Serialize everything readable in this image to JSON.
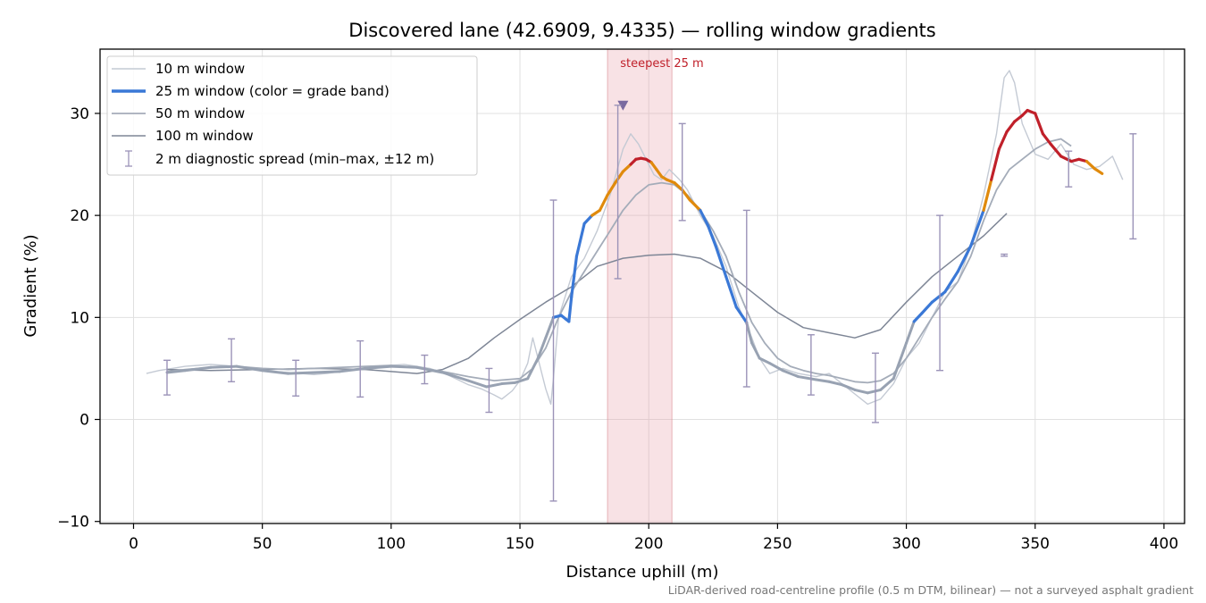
{
  "chart_data": {
    "type": "line",
    "title": "Discovered lane (42.6909, 9.4335) — rolling window gradients",
    "xlabel": "Distance uphill (m)",
    "ylabel": "Gradient (%)",
    "xlim": [
      -13,
      408
    ],
    "ylim": [
      -10.2,
      36.3
    ],
    "xticks": [
      0,
      50,
      100,
      150,
      200,
      250,
      300,
      350,
      400
    ],
    "yticks": [
      -10,
      0,
      10,
      20,
      30
    ],
    "xtick_labels": [
      "0",
      "50",
      "100",
      "150",
      "200",
      "250",
      "300",
      "350",
      "400"
    ],
    "ytick_labels": [
      "−10",
      "0",
      "10",
      "20",
      "30"
    ],
    "grid": true,
    "legend_position": "top-left",
    "footnote": "LiDAR-derived road-centreline profile (0.5 m DTM, bilinear) — not a surveyed asphalt gradient",
    "highlight": {
      "x_start": 184,
      "x_end": 209,
      "label": "steepest 25 m",
      "marker_x": 190,
      "marker_y": 30.8
    },
    "grade_band_colors": {
      "low": "#3a78d6",
      "mid": "#e08a0c",
      "high": "#c0202a"
    },
    "series": [
      {
        "name": "10 m window",
        "color": "#c4cad4",
        "x": [
          5,
          10,
          15,
          20,
          25,
          30,
          35,
          40,
          45,
          50,
          55,
          60,
          65,
          70,
          75,
          80,
          85,
          90,
          95,
          100,
          105,
          110,
          115,
          120,
          125,
          130,
          135,
          140,
          143,
          147,
          150,
          153,
          155,
          157,
          160,
          162,
          163,
          165,
          170,
          175,
          180,
          185,
          190,
          193,
          196,
          199,
          202,
          205,
          208,
          212,
          215,
          220,
          225,
          230,
          235,
          240,
          243,
          247,
          252,
          258,
          265,
          270,
          275,
          280,
          285,
          290,
          295,
          300,
          305,
          310,
          315,
          320,
          325,
          330,
          335,
          338,
          340,
          342,
          345,
          350,
          355,
          360,
          365,
          370,
          375,
          380,
          384
        ],
        "y": [
          4.5,
          4.8,
          5.0,
          5.2,
          5.3,
          5.4,
          5.3,
          5.2,
          5.0,
          4.8,
          4.7,
          4.6,
          4.5,
          4.4,
          4.5,
          4.7,
          4.9,
          5.0,
          5.2,
          5.3,
          5.4,
          5.2,
          5.0,
          4.6,
          4.0,
          3.4,
          3.0,
          2.4,
          2.0,
          2.8,
          3.8,
          5.5,
          8.0,
          6.0,
          3.0,
          1.5,
          4.0,
          10.0,
          14.0,
          15.8,
          18.5,
          22.0,
          26.5,
          28.0,
          27.0,
          25.5,
          24.0,
          23.5,
          24.5,
          23.5,
          22.5,
          20.0,
          18.0,
          15.0,
          11.0,
          8.0,
          6.0,
          4.5,
          5.0,
          4.5,
          4.2,
          4.5,
          3.5,
          2.5,
          1.5,
          2.0,
          3.5,
          6.0,
          7.5,
          10.0,
          12.5,
          13.5,
          17.0,
          22.0,
          28.0,
          33.5,
          34.2,
          33.0,
          29.0,
          26.0,
          25.5,
          27.0,
          25.0,
          24.5,
          24.8,
          25.8,
          23.5
        ]
      },
      {
        "name": "25 m window (color = grade band)",
        "color": "#3a78d6",
        "x": [
          13,
          20,
          30,
          40,
          50,
          60,
          70,
          80,
          90,
          100,
          110,
          120,
          130,
          137,
          143,
          148,
          153,
          157,
          160,
          163,
          166,
          168,
          169,
          170,
          171,
          172,
          175,
          178,
          181,
          184,
          187,
          190,
          193,
          195,
          197,
          199,
          201,
          203,
          205,
          207,
          210,
          213,
          216,
          220,
          223,
          226,
          230,
          234,
          238,
          240,
          243,
          247,
          252,
          258,
          265,
          270,
          275,
          280,
          285,
          290,
          295,
          300,
          303,
          306,
          310,
          315,
          320,
          325,
          330,
          333,
          336,
          339,
          342,
          345,
          347,
          350,
          353,
          356,
          360,
          364,
          367,
          370,
          373,
          376
        ],
        "y": [
          4.6,
          4.8,
          5.1,
          5.2,
          4.8,
          4.5,
          4.6,
          4.7,
          5.0,
          5.2,
          5.1,
          4.6,
          3.8,
          3.2,
          3.5,
          3.6,
          4.0,
          6.0,
          8.0,
          10.0,
          10.2,
          9.8,
          9.6,
          12.0,
          14.0,
          16.0,
          19.2,
          20.0,
          20.5,
          22.0,
          23.2,
          24.3,
          25.0,
          25.5,
          25.6,
          25.5,
          25.2,
          24.5,
          23.8,
          23.5,
          23.2,
          22.5,
          21.5,
          20.5,
          19.0,
          17.0,
          14.0,
          11.0,
          9.5,
          7.5,
          6.0,
          5.5,
          4.8,
          4.2,
          3.9,
          3.7,
          3.4,
          2.9,
          2.6,
          2.9,
          4.0,
          7.5,
          9.6,
          10.4,
          11.5,
          12.5,
          14.5,
          17.0,
          20.5,
          23.5,
          26.5,
          28.2,
          29.2,
          29.8,
          30.3,
          30.0,
          28.0,
          27.0,
          25.8,
          25.3,
          25.5,
          25.3,
          24.6,
          24.1
        ]
      },
      {
        "name": "50 m window",
        "color": "#a4acb9",
        "x": [
          13,
          20,
          30,
          40,
          50,
          60,
          70,
          80,
          90,
          100,
          110,
          120,
          130,
          140,
          150,
          155,
          160,
          165,
          170,
          175,
          180,
          185,
          190,
          195,
          200,
          205,
          210,
          215,
          220,
          225,
          230,
          235,
          240,
          245,
          250,
          255,
          260,
          265,
          270,
          275,
          280,
          285,
          290,
          295,
          300,
          305,
          310,
          315,
          320,
          325,
          330,
          335,
          340,
          345,
          350,
          355,
          360,
          364
        ],
        "y": [
          4.7,
          4.9,
          5.1,
          5.2,
          5.0,
          4.9,
          5.0,
          5.1,
          5.2,
          5.3,
          5.1,
          4.7,
          4.2,
          3.8,
          4.0,
          5.0,
          7.0,
          10.0,
          12.5,
          14.5,
          16.5,
          18.5,
          20.5,
          22.0,
          23.0,
          23.2,
          23.0,
          22.0,
          20.5,
          18.5,
          16.0,
          12.5,
          9.5,
          7.5,
          6.0,
          5.2,
          4.8,
          4.5,
          4.3,
          4.0,
          3.7,
          3.6,
          3.8,
          4.5,
          6.0,
          8.0,
          10.0,
          11.8,
          13.5,
          16.0,
          19.5,
          22.5,
          24.5,
          25.5,
          26.5,
          27.2,
          27.5,
          26.8
        ]
      },
      {
        "name": "100 m window",
        "color": "#7e8696",
        "x": [
          13,
          30,
          50,
          70,
          90,
          110,
          120,
          130,
          140,
          150,
          160,
          170,
          180,
          190,
          200,
          210,
          220,
          230,
          240,
          250,
          260,
          270,
          280,
          290,
          300,
          310,
          320,
          330,
          339
        ],
        "y": [
          4.9,
          4.8,
          4.9,
          5.0,
          4.9,
          4.5,
          4.9,
          6.0,
          8.0,
          9.8,
          11.5,
          13.0,
          15.0,
          15.8,
          16.1,
          16.2,
          15.8,
          14.5,
          12.5,
          10.5,
          9.0,
          8.5,
          8.0,
          8.8,
          11.5,
          14.0,
          16.0,
          18.0,
          20.2
        ]
      }
    ],
    "diagnostic": {
      "name": "2 m diagnostic spread (min–max, ±12 m)",
      "color": "#9b93b8",
      "points": [
        {
          "x": 13,
          "min": 2.4,
          "max": 5.8
        },
        {
          "x": 38,
          "min": 3.7,
          "max": 7.9
        },
        {
          "x": 63,
          "min": 2.3,
          "max": 5.8
        },
        {
          "x": 88,
          "min": 2.2,
          "max": 7.7
        },
        {
          "x": 113,
          "min": 3.5,
          "max": 6.3
        },
        {
          "x": 138,
          "min": 0.7,
          "max": 5.0
        },
        {
          "x": 163,
          "min": -8.0,
          "max": 21.5
        },
        {
          "x": 188,
          "min": 13.8,
          "max": 30.8
        },
        {
          "x": 213,
          "min": 19.5,
          "max": 29.0
        },
        {
          "x": 238,
          "min": 3.2,
          "max": 20.5
        },
        {
          "x": 263,
          "min": 2.4,
          "max": 8.3
        },
        {
          "x": 288,
          "min": -0.3,
          "max": 6.5
        },
        {
          "x": 313,
          "min": 4.8,
          "max": 20.0
        },
        {
          "x": 338,
          "min": 16.0,
          "max": 16.2
        },
        {
          "x": 363,
          "min": 22.8,
          "max": 26.3
        },
        {
          "x": 388,
          "min": 17.7,
          "max": 28.0
        }
      ]
    }
  }
}
